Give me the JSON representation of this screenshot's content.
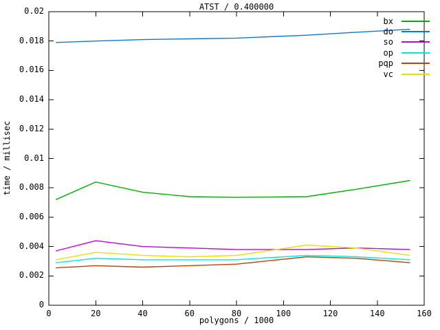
{
  "chart_data": {
    "type": "line",
    "title": "ATST / 0.400000",
    "xlabel": "polygons / 1000",
    "ylabel": "time / millisec",
    "xlim": [
      0,
      160
    ],
    "ylim": [
      0,
      0.02
    ],
    "xticks": [
      0,
      20,
      40,
      60,
      80,
      100,
      120,
      140,
      160
    ],
    "xtick_labels": [
      "0",
      "20",
      "40",
      "60",
      "80",
      "100",
      "120",
      "140",
      "160"
    ],
    "yticks": [
      0,
      0.002,
      0.004,
      0.006,
      0.008,
      0.01,
      0.012,
      0.014,
      0.016,
      0.018,
      0.02
    ],
    "ytick_labels": [
      "0",
      "0.002",
      "0.004",
      "0.006",
      "0.008",
      "0.01",
      "0.012",
      "0.014",
      "0.016",
      "0.018",
      "0.02"
    ],
    "grid": false,
    "legend_position": "top-right-inside",
    "frame_color": "#000000",
    "x": [
      3,
      20,
      40,
      60,
      80,
      110,
      131,
      154
    ],
    "series": [
      {
        "name": "bx",
        "color": "#00b000",
        "values": [
          0.0072,
          0.0084,
          0.0077,
          0.0074,
          0.00735,
          0.0074,
          0.0079,
          0.0085
        ]
      },
      {
        "name": "do",
        "color": "#0b78d8",
        "values": [
          0.0179,
          0.018,
          0.0181,
          0.01815,
          0.0182,
          0.0184,
          0.0186,
          0.0188
        ]
      },
      {
        "name": "so",
        "color": "#c000e0",
        "values": [
          0.0037,
          0.0044,
          0.004,
          0.0039,
          0.0038,
          0.0038,
          0.0039,
          0.0038
        ]
      },
      {
        "name": "op",
        "color": "#00e5e5",
        "values": [
          0.0029,
          0.0032,
          0.0031,
          0.0031,
          0.0031,
          0.0034,
          0.0033,
          0.0031
        ]
      },
      {
        "name": "pqp",
        "color": "#c04000",
        "values": [
          0.00255,
          0.0027,
          0.0026,
          0.0027,
          0.0028,
          0.0033,
          0.0032,
          0.0029
        ]
      },
      {
        "name": "vc",
        "color": "#e3e300",
        "values": [
          0.0031,
          0.0036,
          0.0034,
          0.0033,
          0.0034,
          0.0041,
          0.0039,
          0.0034
        ]
      }
    ]
  }
}
